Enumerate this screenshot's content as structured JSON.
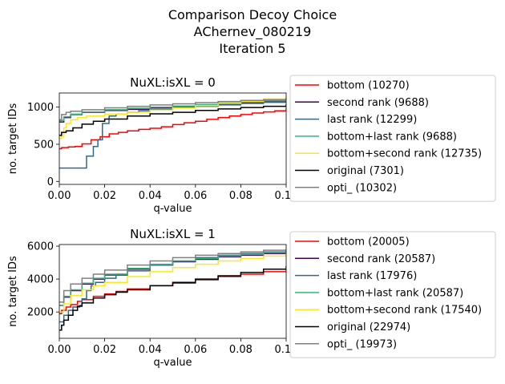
{
  "figure": {
    "title_lines": [
      "Comparison Decoy Choice",
      "AChernev_080219",
      "Iteration 5"
    ]
  },
  "chart_data": [
    {
      "type": "line",
      "title": "NuXL:isXL = 0",
      "xlabel": "q-value",
      "ylabel": "no. target IDs",
      "xlim": [
        0,
        0.1
      ],
      "ylim": [
        -40,
        1190
      ],
      "xticks": [
        0,
        0.02,
        0.04,
        0.06,
        0.08,
        0.1
      ],
      "xtick_labels": [
        "0.00",
        "0.02",
        "0.04",
        "0.06",
        "0.08",
        "0.10"
      ],
      "yticks": [
        0,
        500,
        1000
      ],
      "ytick_labels": [
        "0",
        "500",
        "1000"
      ],
      "grid": false,
      "legend_position": "outside-right",
      "series": [
        {
          "name": "bottom (10270)",
          "color": "#ff0000",
          "x": [
            0,
            0.001,
            0.004,
            0.007,
            0.01,
            0.014,
            0.018,
            0.022,
            0.026,
            0.03,
            0.035,
            0.04,
            0.045,
            0.05,
            0.055,
            0.06,
            0.065,
            0.07,
            0.075,
            0.08,
            0.085,
            0.09,
            0.095,
            0.1
          ],
          "y": [
            440,
            455,
            465,
            470,
            505,
            560,
            600,
            640,
            660,
            680,
            700,
            715,
            735,
            765,
            790,
            810,
            835,
            860,
            880,
            900,
            920,
            935,
            950,
            975
          ]
        },
        {
          "name": "second rank (9688)",
          "color": "#440154",
          "x": [
            0,
            0.002,
            0.005,
            0.01,
            0.02,
            0.03,
            0.04,
            0.05,
            0.06,
            0.07,
            0.08,
            0.09,
            0.1
          ],
          "y": [
            800,
            860,
            900,
            930,
            955,
            970,
            990,
            1005,
            1020,
            1040,
            1060,
            1075,
            1090
          ]
        },
        {
          "name": "last rank (12299)",
          "color": "#31688e",
          "x": [
            0,
            0.0119,
            0.012,
            0.015,
            0.017,
            0.0189,
            0.019,
            0.0219,
            0.022,
            0.025,
            0.03,
            0.035,
            0.04,
            0.05,
            0.06,
            0.07,
            0.08,
            0.09,
            0.1
          ],
          "y": [
            180,
            180,
            340,
            470,
            560,
            560,
            780,
            860,
            880,
            905,
            930,
            950,
            970,
            990,
            1010,
            1030,
            1050,
            1065,
            1080
          ]
        },
        {
          "name": "bottom+last rank (9688)",
          "color": "#35b779",
          "x": [
            0,
            0.002,
            0.005,
            0.01,
            0.02,
            0.03,
            0.04,
            0.05,
            0.06,
            0.07,
            0.08,
            0.09,
            0.1
          ],
          "y": [
            820,
            870,
            905,
            935,
            965,
            985,
            1000,
            1015,
            1035,
            1055,
            1070,
            1085,
            1100
          ]
        },
        {
          "name": "bottom+second rank (12735)",
          "color": "#fde725",
          "x": [
            0,
            0.001,
            0.002,
            0.003,
            0.005,
            0.008,
            0.012,
            0.02,
            0.03,
            0.04,
            0.05,
            0.06,
            0.07,
            0.08,
            0.09,
            0.1
          ],
          "y": [
            580,
            600,
            720,
            780,
            830,
            860,
            880,
            905,
            930,
            960,
            990,
            1020,
            1050,
            1080,
            1110,
            1135
          ]
        },
        {
          "name": "original (7301)",
          "color": "#000000",
          "x": [
            0,
            0.001,
            0.003,
            0.006,
            0.01,
            0.015,
            0.02,
            0.03,
            0.04,
            0.05,
            0.06,
            0.07,
            0.08,
            0.09,
            0.1
          ],
          "y": [
            620,
            660,
            680,
            720,
            770,
            810,
            840,
            880,
            910,
            930,
            955,
            975,
            995,
            1010,
            1030
          ]
        },
        {
          "name": "opti_ (10302)",
          "color": "#808080",
          "x": [
            0,
            0.001,
            0.003,
            0.005,
            0.01,
            0.02,
            0.03,
            0.04,
            0.05,
            0.06,
            0.07,
            0.08,
            0.09,
            0.1
          ],
          "y": [
            830,
            900,
            930,
            945,
            965,
            990,
            1010,
            1030,
            1045,
            1060,
            1075,
            1090,
            1100,
            1115
          ]
        }
      ]
    },
    {
      "type": "line",
      "title": "NuXL:isXL = 1",
      "xlabel": "q-value",
      "ylabel": "no. target IDs",
      "xlim": [
        0,
        0.1
      ],
      "ylim": [
        400,
        6100
      ],
      "xticks": [
        0,
        0.02,
        0.04,
        0.06,
        0.08,
        0.1
      ],
      "xtick_labels": [
        "0.00",
        "0.02",
        "0.04",
        "0.06",
        "0.08",
        "0.10"
      ],
      "yticks": [
        2000,
        4000,
        6000
      ],
      "ytick_labels": [
        "2000",
        "4000",
        "6000"
      ],
      "grid": false,
      "legend_position": "outside-right",
      "series": [
        {
          "name": "bottom (20005)",
          "color": "#ff0000",
          "x": [
            0,
            0.001,
            0.003,
            0.005,
            0.008,
            0.01,
            0.015,
            0.02,
            0.025,
            0.03,
            0.04,
            0.05,
            0.06,
            0.07,
            0.08,
            0.09,
            0.1
          ],
          "y": [
            1900,
            2100,
            2300,
            2450,
            2650,
            2750,
            2950,
            3100,
            3250,
            3400,
            3600,
            3750,
            3950,
            4150,
            4300,
            4450,
            4600
          ]
        },
        {
          "name": "second rank (20587)",
          "color": "#440154",
          "x": [
            0,
            0.002,
            0.005,
            0.01,
            0.015,
            0.02,
            0.03,
            0.04,
            0.05,
            0.06,
            0.07,
            0.08,
            0.09,
            0.1
          ],
          "y": [
            2400,
            2900,
            3300,
            3700,
            4000,
            4250,
            4600,
            4850,
            5050,
            5200,
            5350,
            5450,
            5550,
            5650
          ]
        },
        {
          "name": "last rank (17976)",
          "color": "#31688e",
          "x": [
            0,
            0.002,
            0.004,
            0.006,
            0.009,
            0.01,
            0.012,
            0.014,
            0.016,
            0.02,
            0.025,
            0.03,
            0.04,
            0.05,
            0.06,
            0.07,
            0.08,
            0.09,
            0.1
          ],
          "y": [
            1400,
            1800,
            2100,
            2300,
            2400,
            2800,
            3300,
            3600,
            3800,
            4050,
            4300,
            4500,
            4850,
            5100,
            5300,
            5450,
            5550,
            5650,
            5750
          ]
        },
        {
          "name": "bottom+last rank (20587)",
          "color": "#35b779",
          "x": [
            0,
            0.002,
            0.005,
            0.01,
            0.015,
            0.02,
            0.03,
            0.04,
            0.05,
            0.06,
            0.07,
            0.08,
            0.09,
            0.1
          ],
          "y": [
            2400,
            2950,
            3350,
            3750,
            4050,
            4300,
            4650,
            4900,
            5100,
            5250,
            5400,
            5500,
            5600,
            5700
          ]
        },
        {
          "name": "bottom+second rank (17540)",
          "color": "#fde725",
          "x": [
            0,
            0.002,
            0.005,
            0.01,
            0.015,
            0.02,
            0.03,
            0.04,
            0.05,
            0.06,
            0.07,
            0.08,
            0.09,
            0.1
          ],
          "y": [
            2000,
            2500,
            3000,
            3350,
            3600,
            3800,
            4150,
            4450,
            4700,
            4900,
            5100,
            5250,
            5400,
            5550
          ]
        },
        {
          "name": "original (22974)",
          "color": "#000000",
          "x": [
            0,
            0.001,
            0.002,
            0.004,
            0.006,
            0.008,
            0.01,
            0.015,
            0.02,
            0.025,
            0.03,
            0.04,
            0.05,
            0.06,
            0.07,
            0.08,
            0.09,
            0.1
          ],
          "y": [
            900,
            1200,
            1500,
            1800,
            2100,
            2350,
            2550,
            2850,
            3050,
            3200,
            3350,
            3600,
            3800,
            4000,
            4200,
            4400,
            4600,
            4750
          ]
        },
        {
          "name": "opti_ (19973)",
          "color": "#808080",
          "x": [
            0,
            0.002,
            0.005,
            0.01,
            0.015,
            0.02,
            0.03,
            0.04,
            0.05,
            0.06,
            0.07,
            0.08,
            0.09,
            0.1
          ],
          "y": [
            2600,
            3300,
            3700,
            4050,
            4300,
            4550,
            4850,
            5100,
            5300,
            5450,
            5550,
            5650,
            5750,
            5800
          ]
        }
      ]
    }
  ]
}
